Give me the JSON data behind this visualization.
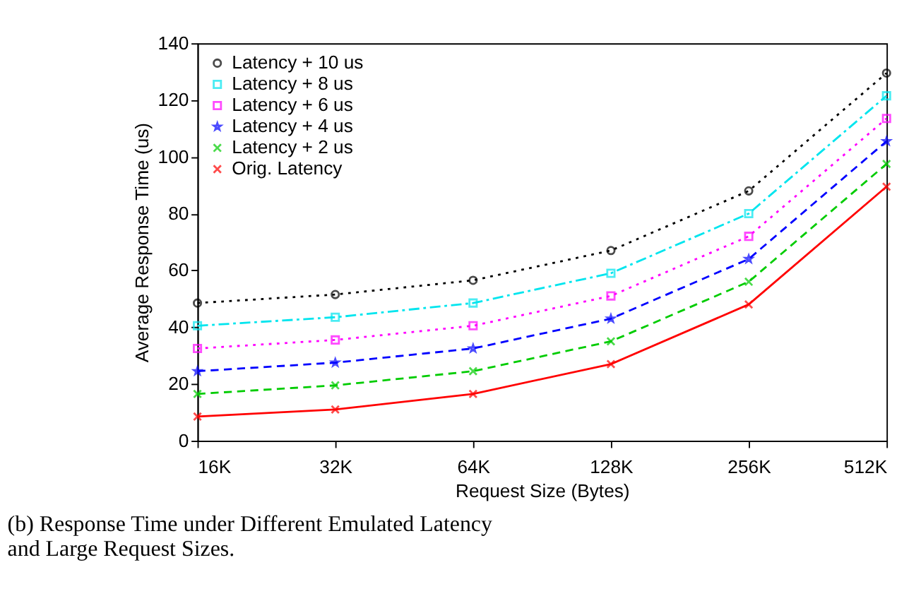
{
  "chart_data": {
    "type": "line",
    "xlabel": "Request Size (Bytes)",
    "ylabel": "Average Response Time (us)",
    "categories": [
      "16K",
      "32K",
      "64K",
      "128K",
      "256K",
      "512K"
    ],
    "ylim": [
      0,
      140
    ],
    "yticks": [
      0,
      20,
      40,
      60,
      80,
      100,
      120,
      140
    ],
    "grid": false,
    "legend": "top left",
    "series": [
      {
        "name": "Latency + 10 us",
        "color": "#000000",
        "line_style": "dotted",
        "marker": "circle",
        "values": [
          48.5,
          51.5,
          56.5,
          67,
          88,
          129.5
        ]
      },
      {
        "name": "Latency + 8 us",
        "color": "#00e5ee",
        "line_style": "dashdot",
        "marker": "square",
        "values": [
          40.5,
          43.5,
          48.5,
          59,
          80,
          121.5
        ]
      },
      {
        "name": "Latency + 6 us",
        "color": "#ff00ff",
        "line_style": "dotted",
        "marker": "square",
        "values": [
          32.5,
          35.5,
          40.5,
          51,
          72,
          113.5
        ]
      },
      {
        "name": "Latency + 4 us",
        "color": "#0000ff",
        "line_style": "dashed",
        "marker": "star",
        "values": [
          24.5,
          27.5,
          32.5,
          43,
          64,
          105.5
        ]
      },
      {
        "name": "Latency + 2 us",
        "color": "#00cc00",
        "line_style": "dashed",
        "marker": "cross",
        "values": [
          16.5,
          19.5,
          24.5,
          35,
          56,
          97.5
        ]
      },
      {
        "name": "Orig. Latency",
        "color": "#ff0000",
        "line_style": "solid",
        "marker": "cross",
        "values": [
          8.5,
          11,
          16.5,
          27,
          48,
          89.5
        ]
      }
    ],
    "annotations": [
      "(b) Response Time under Different Emulated Latency and Large Request Sizes."
    ]
  }
}
